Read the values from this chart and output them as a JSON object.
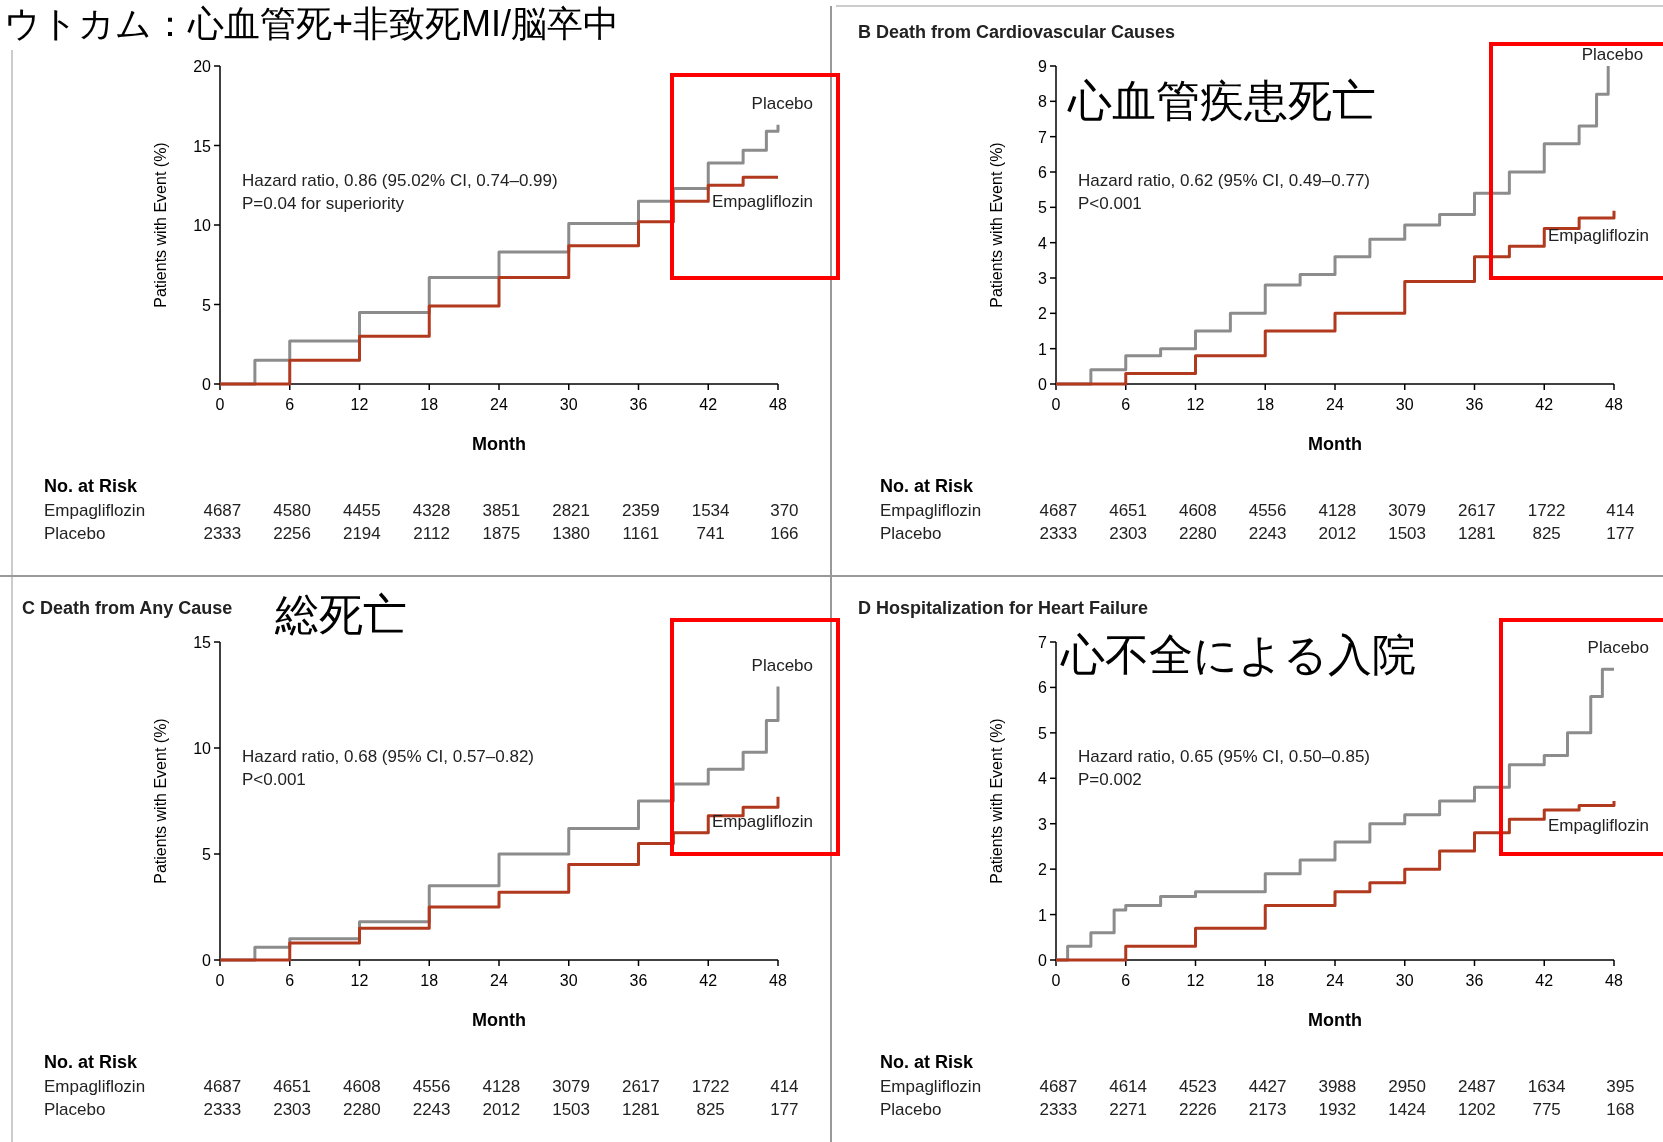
{
  "chart_data": [
    {
      "type": "step",
      "title": "ウトカム：心血管死+非致死MI/脳卒中",
      "xlabel": "Month",
      "ylabel": "Patients with Event (%)",
      "xlim": [
        0,
        48
      ],
      "xticks": [
        0,
        6,
        12,
        18,
        24,
        30,
        36,
        42,
        48
      ],
      "ylim": [
        0,
        20
      ],
      "yticks": [
        0,
        5,
        10,
        15,
        20
      ],
      "grid": false,
      "legend": false,
      "series": [
        {
          "name": "Placebo",
          "color": "#8c8c8c",
          "x": [
            0,
            3,
            6,
            12,
            18,
            24,
            30,
            36,
            39,
            42,
            45,
            47,
            48
          ],
          "values": [
            0,
            1.5,
            2.7,
            4.5,
            6.7,
            8.3,
            10.1,
            11.5,
            12.3,
            13.9,
            14.7,
            15.9,
            16.3
          ]
        },
        {
          "name": "Empagliflozin",
          "color": "#b0391e",
          "x": [
            0,
            6,
            12,
            18,
            24,
            30,
            36,
            39,
            42,
            45,
            48
          ],
          "values": [
            0,
            1.5,
            3.0,
            4.9,
            6.7,
            8.7,
            10.2,
            11.5,
            12.5,
            13.0,
            13.0
          ]
        }
      ],
      "annotations": [
        "Hazard ratio, 0.86 (95.02% CI, 0.74–0.99)",
        "P=0.04 for superiority",
        "No. at Risk",
        "Empagliflozin 4687 4580 4455 4328 3851 2821 2359 1534 370",
        "Placebo 2333 2256 2194 2112 1875 1380 1161 741 166"
      ]
    },
    {
      "type": "step",
      "title": "B Death from Cardiovascular Causes",
      "subtitle": "心血管疾患死亡",
      "xlabel": "Month",
      "ylabel": "Patients with Event (%)",
      "xlim": [
        0,
        48
      ],
      "xticks": [
        0,
        6,
        12,
        18,
        24,
        30,
        36,
        42,
        48
      ],
      "ylim": [
        0,
        9
      ],
      "yticks": [
        0,
        1,
        2,
        3,
        4,
        5,
        6,
        7,
        8,
        9
      ],
      "grid": false,
      "legend": false,
      "series": [
        {
          "name": "Placebo",
          "color": "#8c8c8c",
          "x": [
            0,
            3,
            6,
            9,
            12,
            15,
            18,
            21,
            24,
            27,
            30,
            33,
            36,
            39,
            42,
            45,
            46.5,
            47.5
          ],
          "values": [
            0,
            0.4,
            0.8,
            1.0,
            1.5,
            2.0,
            2.8,
            3.1,
            3.6,
            4.1,
            4.5,
            4.8,
            5.4,
            6.0,
            6.8,
            7.3,
            8.2,
            9.0
          ]
        },
        {
          "name": "Empagliflozin",
          "color": "#b0391e",
          "x": [
            0,
            6,
            12,
            18,
            24,
            30,
            36,
            39,
            42,
            45,
            48
          ],
          "values": [
            0,
            0.3,
            0.8,
            1.5,
            2.0,
            2.9,
            3.6,
            3.9,
            4.4,
            4.7,
            4.9
          ]
        }
      ],
      "annotations": [
        "Hazard ratio, 0.62 (95% CI, 0.49–0.77)",
        "P<0.001",
        "No. at Risk",
        "Empagliflozin 4687 4651 4608 4556 4128 3079 2617 1722 414",
        "Placebo 2333 2303 2280 2243 2012 1503 1281 825 177"
      ]
    },
    {
      "type": "step",
      "title": "C Death from Any Cause",
      "subtitle": "総死亡",
      "xlabel": "Month",
      "ylabel": "Patients with Event (%)",
      "xlim": [
        0,
        48
      ],
      "xticks": [
        0,
        6,
        12,
        18,
        24,
        30,
        36,
        42,
        48
      ],
      "ylim": [
        0,
        15
      ],
      "yticks": [
        0,
        5,
        10,
        15
      ],
      "grid": false,
      "legend": false,
      "series": [
        {
          "name": "Placebo",
          "color": "#8c8c8c",
          "x": [
            0,
            3,
            6,
            12,
            18,
            24,
            30,
            36,
            39,
            42,
            45,
            47,
            48
          ],
          "values": [
            0,
            0.6,
            1.0,
            1.8,
            3.5,
            5.0,
            6.2,
            7.5,
            8.3,
            9.0,
            9.8,
            11.3,
            12.9
          ]
        },
        {
          "name": "Empagliflozin",
          "color": "#b0391e",
          "x": [
            0,
            6,
            12,
            18,
            24,
            30,
            36,
            39,
            42,
            45,
            48
          ],
          "values": [
            0,
            0.8,
            1.5,
            2.5,
            3.2,
            4.5,
            5.5,
            6.0,
            6.8,
            7.2,
            7.7
          ]
        }
      ],
      "annotations": [
        "Hazard ratio, 0.68 (95% CI, 0.57–0.82)",
        "P<0.001",
        "No. at Risk",
        "Empagliflozin 4687 4651 4608 4556 4128 3079 2617 1722 414",
        "Placebo 2333 2303 2280 2243 2012 1503 1281 825 177"
      ]
    },
    {
      "type": "step",
      "title": "D Hospitalization for Heart Failure",
      "subtitle": "心不全による入院",
      "xlabel": "Month",
      "ylabel": "Patients with Event (%)",
      "xlim": [
        0,
        48
      ],
      "xticks": [
        0,
        6,
        12,
        18,
        24,
        30,
        36,
        42,
        48
      ],
      "ylim": [
        0,
        7
      ],
      "yticks": [
        0,
        1,
        2,
        3,
        4,
        5,
        6,
        7
      ],
      "grid": false,
      "legend": false,
      "series": [
        {
          "name": "Placebo",
          "color": "#8c8c8c",
          "x": [
            0,
            1,
            3,
            5,
            6,
            9,
            12,
            18,
            21,
            24,
            27,
            30,
            33,
            36,
            39,
            42,
            44,
            46,
            47,
            48
          ],
          "values": [
            0,
            0.3,
            0.6,
            1.1,
            1.2,
            1.4,
            1.5,
            1.9,
            2.2,
            2.6,
            3.0,
            3.2,
            3.5,
            3.8,
            4.3,
            4.5,
            5.0,
            5.8,
            6.4,
            6.4
          ]
        },
        {
          "name": "Empagliflozin",
          "color": "#b0391e",
          "x": [
            0,
            6,
            12,
            18,
            24,
            27,
            30,
            33,
            36,
            39,
            42,
            45,
            48
          ],
          "values": [
            0,
            0.3,
            0.7,
            1.2,
            1.5,
            1.7,
            2.0,
            2.4,
            2.8,
            3.1,
            3.3,
            3.4,
            3.5
          ]
        }
      ],
      "annotations": [
        "Hazard ratio, 0.65 (95% CI, 0.50–0.85)",
        "P=0.002",
        "No. at Risk",
        "Empagliflozin 4687 4614 4523 4427 3988 2950 2487 1634 395",
        "Placebo 2333 2271 2226 2173 1932 1424 1202 775 168"
      ]
    }
  ]
}
